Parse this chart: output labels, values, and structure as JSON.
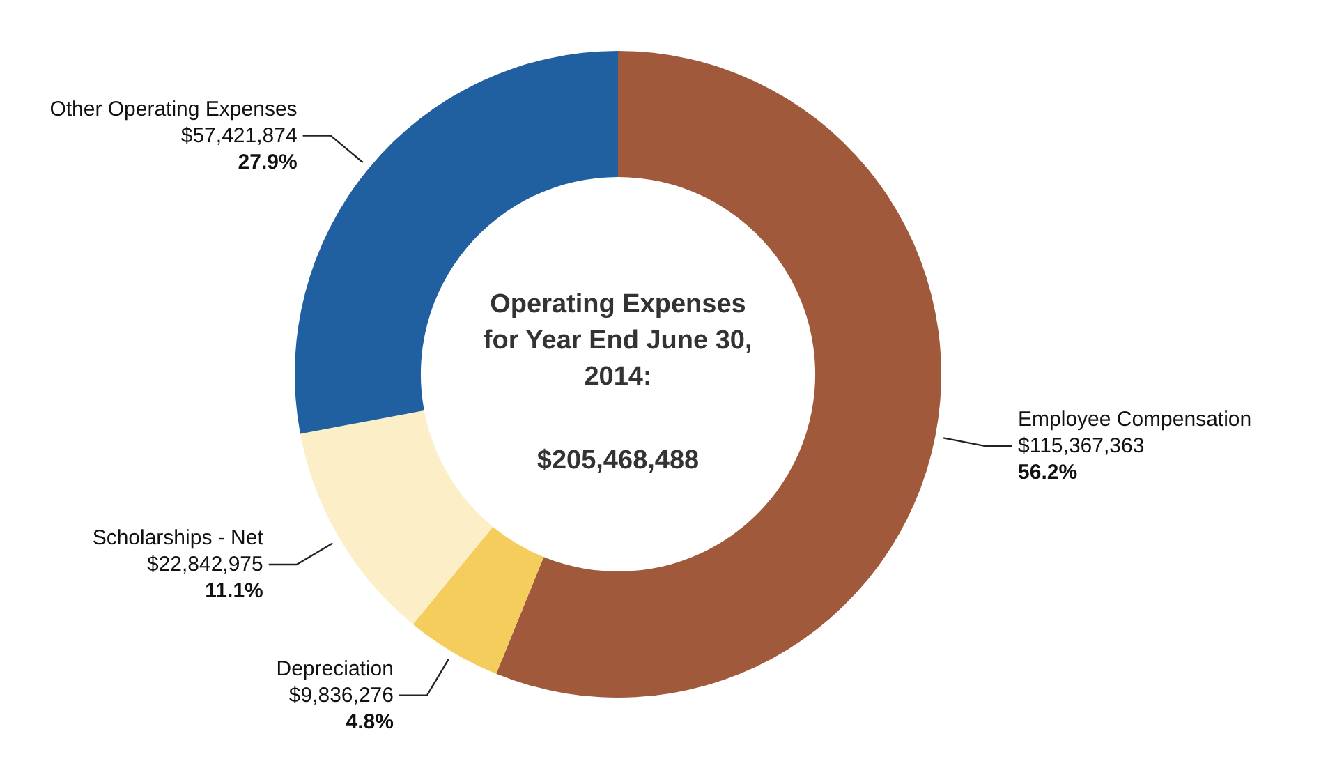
{
  "chart_data": {
    "type": "donut",
    "title": "Operating Expenses for Year End June 30, 2014:",
    "subtitle": "$205,468,488",
    "categories": [
      "Employee Compensation",
      "Depreciation",
      "Scholarships - Net",
      "Other Operating Expenses"
    ],
    "values": [
      115367363,
      9836276,
      22842975,
      57421874
    ],
    "colors": [
      "#a0593a",
      "#f5cd5d",
      "#fcefc8",
      "#2060a0"
    ],
    "value_labels": [
      "$115,367,363\n56.2%",
      "$9,836,276\n4.8%",
      "$22,842,975\n11.1%",
      "$57,421,874\n27.9%"
    ],
    "legend": false
  }
}
